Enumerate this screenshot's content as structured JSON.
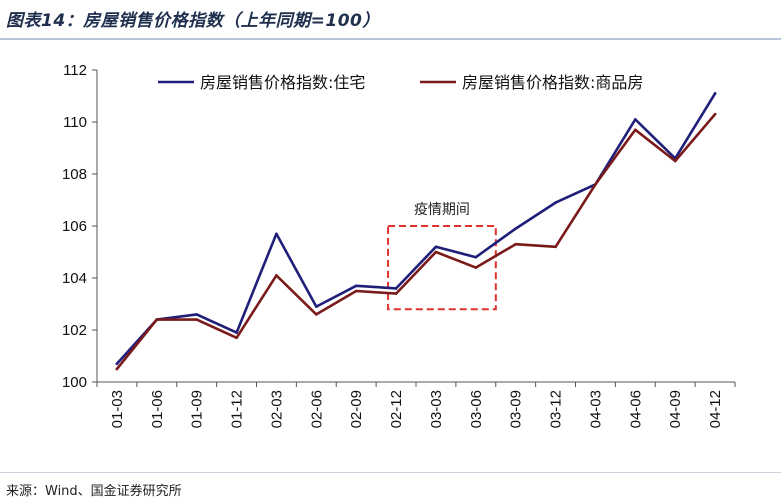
{
  "header": {
    "title": "图表14：房屋销售价格指数（上年同期=100）"
  },
  "footer": {
    "source": "来源：Wind、国金证券研究所"
  },
  "chart_data": {
    "type": "line",
    "title": "",
    "xlabel": "",
    "ylabel": "",
    "categories": [
      "01-03",
      "01-06",
      "01-09",
      "01-12",
      "02-03",
      "02-06",
      "02-09",
      "02-12",
      "03-03",
      "03-06",
      "03-09",
      "03-12",
      "04-03",
      "04-06",
      "04-09",
      "04-12"
    ],
    "series": [
      {
        "name": "房屋销售价格指数:住宅",
        "color": "#1f1f7a",
        "values": [
          100.7,
          102.4,
          102.6,
          101.9,
          105.7,
          102.9,
          103.7,
          103.6,
          105.2,
          104.8,
          105.9,
          106.9,
          107.6,
          110.1,
          108.6,
          111.1
        ]
      },
      {
        "name": "房屋销售价格指数:商品房",
        "color": "#7a1a1a",
        "values": [
          100.5,
          102.4,
          102.4,
          101.7,
          104.1,
          102.6,
          103.5,
          103.4,
          105.0,
          104.4,
          105.3,
          105.2,
          107.6,
          109.7,
          108.5,
          110.3
        ]
      }
    ],
    "yticks": [
      100,
      102,
      104,
      106,
      108,
      110,
      112
    ],
    "ylim": [
      100,
      112
    ],
    "grid": false,
    "legend": "top",
    "annotation": {
      "label": "疫情期间",
      "x_range": [
        "02-12",
        "03-06"
      ],
      "y_range": [
        102.8,
        106.0
      ],
      "color": "#e0322c"
    }
  }
}
